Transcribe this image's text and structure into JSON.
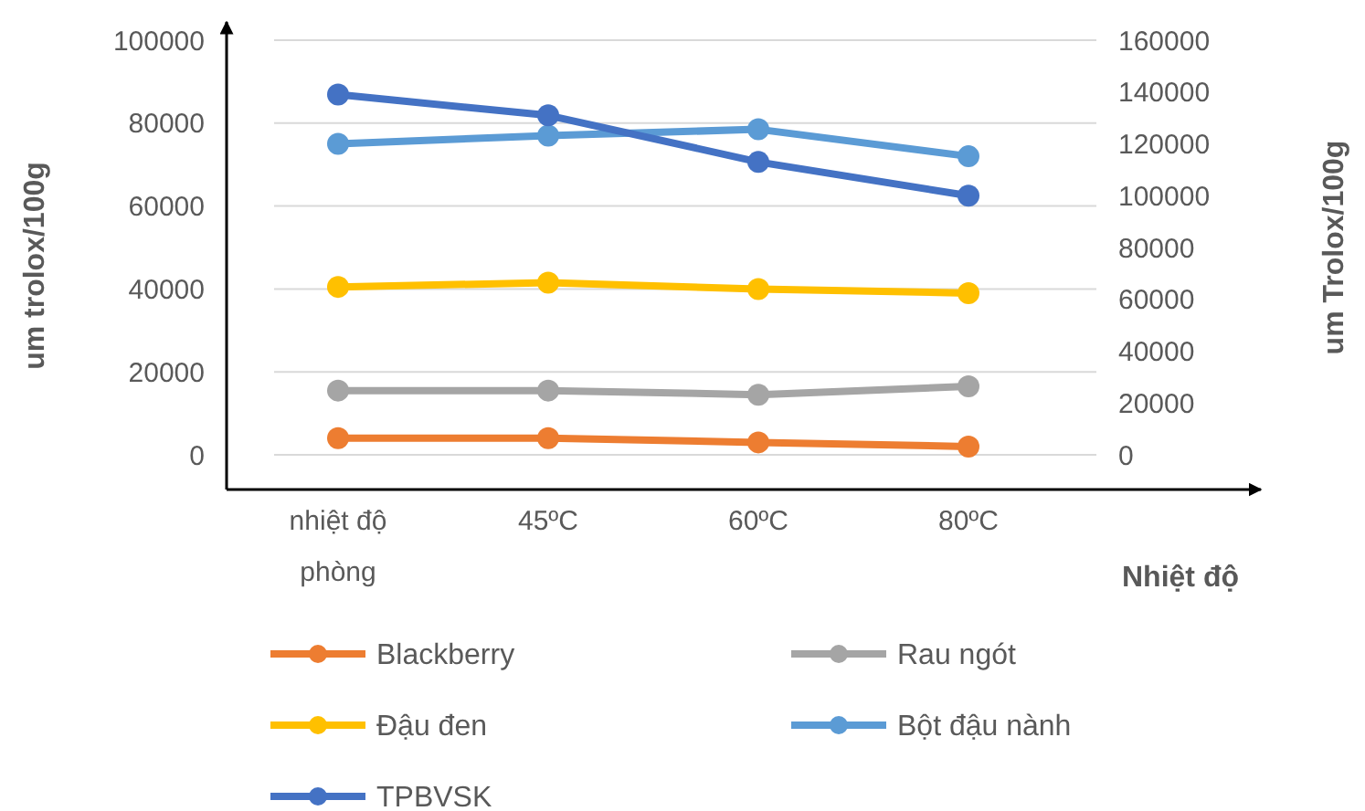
{
  "chart_data": {
    "type": "line",
    "xlabel": "Nhiệt độ",
    "ylabel": "um trolox/100g",
    "y2label": "um Trolox/100g",
    "categories": [
      "nhiệt độ phòng",
      "45ºC",
      "60ºC",
      "80ºC"
    ],
    "series": [
      {
        "name": "Blackberry",
        "color": "#ed7d31",
        "values": [
          4000,
          4000,
          3000,
          2000
        ]
      },
      {
        "name": "Rau ngót",
        "color": "#a5a5a5",
        "values": [
          15500,
          15500,
          14500,
          16500
        ]
      },
      {
        "name": "Đậu đen",
        "color": "#ffc000",
        "values": [
          40500,
          41500,
          40000,
          39000
        ]
      },
      {
        "name": "Bột đậu nành",
        "color": "#5b9bd5",
        "values": [
          75000,
          77000,
          78500,
          72000
        ]
      },
      {
        "name": "TPBVSK",
        "color": "#4472c4",
        "axis": "y2",
        "values": [
          139000,
          131000,
          113000,
          100000
        ]
      }
    ],
    "ylim": [
      0,
      100000
    ],
    "yticks": [
      0,
      20000,
      40000,
      60000,
      80000,
      100000
    ],
    "y2lim": [
      0,
      160000
    ],
    "y2ticks": [
      0,
      20000,
      40000,
      60000,
      80000,
      100000,
      120000,
      140000,
      160000
    ],
    "grid": "y",
    "legend": "bottom",
    "marker": "circle",
    "line_style": "solid"
  }
}
